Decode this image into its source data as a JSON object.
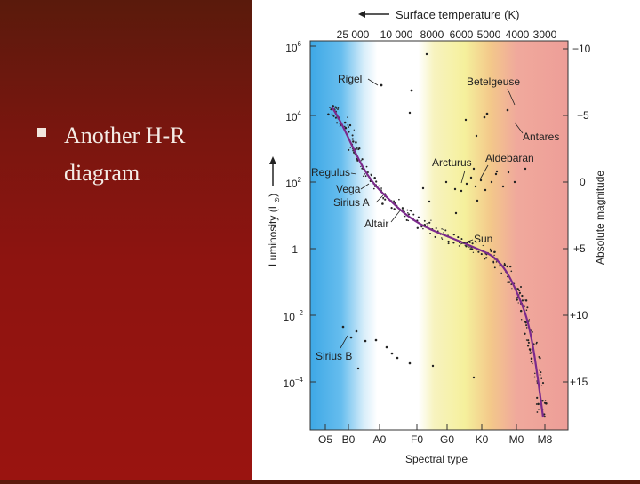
{
  "slide": {
    "bullet_text": "Another H-R diagram",
    "background_color": "#8e1410",
    "bullet_icon": "square-bullet-icon"
  },
  "figure": {
    "top_axis_title": "Surface temperature (K)",
    "top_ticks": [
      "25 000",
      "10 000",
      "8000",
      "6000",
      "5000",
      "4000",
      "3000"
    ],
    "left_axis_title": "Luminosity",
    "left_axis_unit": "(L",
    "left_axis_unit_sub": "⊙",
    "left_axis_unit_close": ")",
    "right_axis_title": "Absolute magnitude",
    "bottom_axis_title": "Spectral type",
    "bottom_ticks": [
      "O5",
      "B0",
      "A0",
      "F0",
      "G0",
      "K0",
      "M0",
      "M8"
    ],
    "left_ticks": [
      {
        "base": "10",
        "exp": "6"
      },
      {
        "base": "10",
        "exp": "4"
      },
      {
        "base": "10",
        "exp": "2"
      },
      {
        "base": "1",
        "exp": ""
      },
      {
        "base": "10",
        "exp": "−2"
      },
      {
        "base": "10",
        "exp": "−4"
      }
    ],
    "right_ticks": [
      "−10",
      "−5",
      "0",
      "+5",
      "+10",
      "+15"
    ],
    "stars": [
      {
        "name": "Rigel"
      },
      {
        "name": "Betelgeuse"
      },
      {
        "name": "Antares"
      },
      {
        "name": "Arcturus"
      },
      {
        "name": "Aldebaran"
      },
      {
        "name": "Regulus"
      },
      {
        "name": "Vega"
      },
      {
        "name": "Sirius A"
      },
      {
        "name": "Altair"
      },
      {
        "name": "Sun"
      },
      {
        "name": "Sirius B"
      }
    ],
    "band_colors": {
      "blue": "#3ea8e6",
      "white": "#ffffff",
      "yellow": "#f5f0a0",
      "orange": "#f3c88a",
      "red": "#eea39a"
    },
    "curve_color": "#7b2a8c"
  }
}
